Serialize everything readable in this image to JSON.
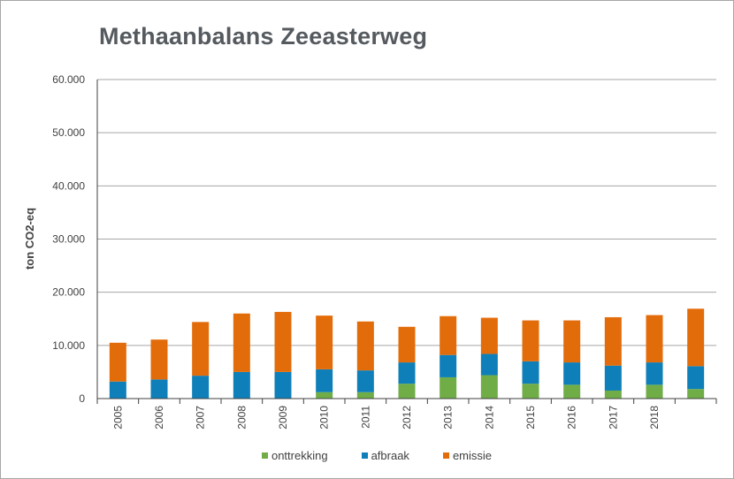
{
  "chart_data": {
    "type": "bar",
    "stacked": true,
    "title": "Methaanbalans Zeeasterweg",
    "xlabel": "",
    "ylabel": "ton CO2-eq",
    "ylim": [
      0,
      60000
    ],
    "yticks": [
      "0",
      "10.000",
      "20.000",
      "30.000",
      "40.000",
      "50.000",
      "60.000"
    ],
    "grid": true,
    "legend_position": "bottom",
    "categories": [
      "2005",
      "2006",
      "2007",
      "2008",
      "2009",
      "2010",
      "2011",
      "2012",
      "2013",
      "2014",
      "2015",
      "2016",
      "2017",
      "2018",
      ""
    ],
    "series": [
      {
        "name": "onttrekking",
        "color": "#70ad47",
        "values": [
          0,
          0,
          0,
          0,
          0,
          1200,
          1200,
          2800,
          4000,
          4400,
          2800,
          2600,
          1500,
          2600,
          1800
        ]
      },
      {
        "name": "afbraak",
        "color": "#0e7fb9",
        "values": [
          3200,
          3600,
          4300,
          5000,
          5000,
          4300,
          4100,
          4000,
          4200,
          4000,
          4200,
          4200,
          4700,
          4200,
          4300
        ]
      },
      {
        "name": "emissie",
        "color": "#e36c0a",
        "values": [
          7300,
          7500,
          10100,
          11000,
          11300,
          10100,
          9200,
          6700,
          7300,
          6800,
          7700,
          7900,
          9100,
          8900,
          10800
        ]
      }
    ]
  }
}
